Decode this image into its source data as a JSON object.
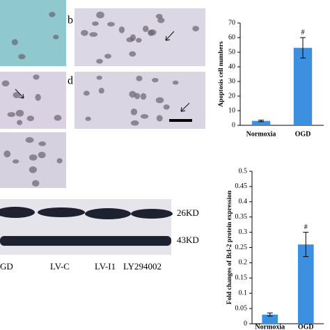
{
  "figure": {
    "panels": [
      "b",
      "d"
    ],
    "blot": {
      "bands": [
        "26KD",
        "43KD"
      ],
      "lanes": [
        "GD",
        "LV-C",
        "LV-I1",
        "LY294002"
      ]
    }
  },
  "chart_data": [
    {
      "type": "bar",
      "ylabel": "Apoptosis cell numbers",
      "categories": [
        "Normoxia",
        "OGD"
      ],
      "values": [
        3,
        53
      ],
      "errors": [
        0.5,
        7
      ],
      "color": "#3d8fe0",
      "annotation": "#",
      "ylim": [
        0,
        70
      ],
      "yticks": [
        0,
        10,
        20,
        30,
        40,
        50,
        60,
        70
      ]
    },
    {
      "type": "bar",
      "ylabel": "Fold changes of Bcl-2 protein expression",
      "categories": [
        "Normoxia",
        "OGD"
      ],
      "values": [
        0.03,
        0.26
      ],
      "errors": [
        0.005,
        0.04
      ],
      "color": "#3d8fe0",
      "annotation": "#",
      "ylim": [
        0,
        0.5
      ],
      "yticks": [
        0,
        0.05,
        0.1,
        0.15,
        0.2,
        0.25,
        0.3,
        0.35,
        0.4,
        0.45,
        0.5
      ]
    }
  ]
}
